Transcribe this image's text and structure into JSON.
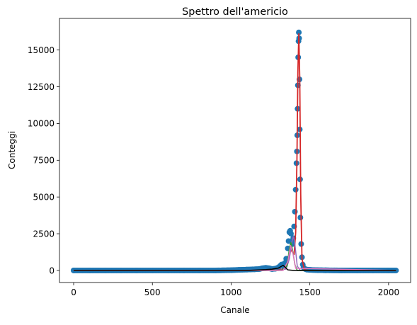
{
  "chart_data": {
    "type": "scatter",
    "title": "Spettro dell'americio",
    "xlabel": "Canale",
    "ylabel": "Conteggi",
    "xlim": [
      -90,
      2140
    ],
    "ylim": [
      -820,
      17150
    ],
    "x_ticks": [
      0,
      500,
      1000,
      1500,
      2000
    ],
    "y_ticks": [
      0,
      2500,
      5000,
      7500,
      10000,
      12500,
      15000
    ],
    "grid": false,
    "legend": "none",
    "colors": {
      "data": "#1f77b4",
      "fit_total": "#d62728",
      "fit_peak_1": "#9467bd",
      "fit_peak_2": "#2ca02c",
      "fit_peak_3": "#000000",
      "fit_peak_4": "#e377c2"
    },
    "series": [
      {
        "kind": "points",
        "color": "#1f77b4",
        "x": [
          0,
          100,
          200,
          300,
          400,
          500,
          600,
          700,
          800,
          900,
          1000,
          1050,
          1100,
          1150,
          1180,
          1200,
          1220,
          1240,
          1260,
          1280,
          1300,
          1310,
          1320,
          1330,
          1340,
          1350,
          1360,
          1365,
          1370,
          1375,
          1380,
          1385,
          1390,
          1395,
          1400,
          1405,
          1410,
          1415,
          1418,
          1420,
          1422,
          1424,
          1426,
          1428,
          1430,
          1432,
          1434,
          1436,
          1438,
          1440,
          1445,
          1450,
          1455,
          1460,
          1470,
          1480,
          1500,
          1550,
          1600,
          1700,
          1800,
          1900,
          2000,
          2047
        ],
        "y": [
          0,
          0,
          0,
          0,
          0,
          0,
          0,
          0,
          0,
          0,
          20,
          40,
          60,
          80,
          100,
          150,
          180,
          150,
          100,
          120,
          200,
          300,
          400,
          300,
          500,
          800,
          1500,
          2000,
          2600,
          2700,
          2500,
          2000,
          1800,
          2200,
          3000,
          4000,
          5500,
          7300,
          8100,
          9200,
          11000,
          12600,
          14500,
          15600,
          16200,
          15800,
          13000,
          9600,
          6200,
          3600,
          1800,
          900,
          400,
          200,
          100,
          60,
          40,
          20,
          10,
          0,
          0,
          0,
          0,
          0
        ]
      },
      {
        "kind": "line",
        "name": "",
        "color": "#d62728",
        "x": [
          0,
          1000,
          1300,
          1340,
          1360,
          1372,
          1380,
          1392,
          1400,
          1410,
          1418,
          1424,
          1430,
          1436,
          1442,
          1450,
          1465,
          1500,
          2047
        ],
        "y": [
          0,
          0,
          20,
          120,
          600,
          1300,
          1400,
          1200,
          1100,
          2600,
          7500,
          13500,
          16100,
          13000,
          5200,
          800,
          40,
          0,
          0
        ]
      },
      {
        "kind": "line",
        "color": "#9467bd",
        "x": [
          0,
          1300,
          1350,
          1370,
          1385,
          1395,
          1402,
          1410,
          1420,
          1440,
          2047
        ],
        "y": [
          0,
          0,
          100,
          800,
          1900,
          2300,
          2050,
          1300,
          300,
          0,
          0
        ]
      },
      {
        "kind": "line",
        "color": "#2ca02c",
        "x": [
          0,
          1320,
          1355,
          1370,
          1380,
          1390,
          1405,
          1420,
          2047
        ],
        "y": [
          0,
          0,
          300,
          1500,
          1900,
          1400,
          400,
          0,
          0
        ]
      },
      {
        "kind": "line",
        "color": "#e377c2",
        "x": [
          0,
          1330,
          1360,
          1378,
          1392,
          1410,
          2047
        ],
        "y": [
          0,
          0,
          600,
          1700,
          1200,
          150,
          0
        ]
      },
      {
        "kind": "line",
        "color": "#000000",
        "x": [
          0,
          1100,
          1220,
          1260,
          1300,
          1330,
          1345,
          1360,
          1400,
          1500,
          2047
        ],
        "y": [
          0,
          0,
          60,
          90,
          160,
          350,
          200,
          40,
          0,
          0,
          0
        ]
      }
    ]
  }
}
